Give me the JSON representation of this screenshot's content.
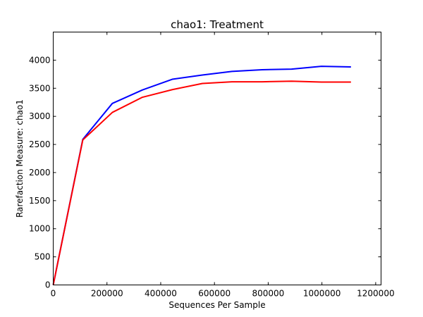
{
  "chart_data": {
    "type": "line",
    "title": "chao1: Treatment",
    "xlabel": "Sequences Per Sample",
    "ylabel": "Rarefaction Measure: chao1",
    "xlim": [
      0,
      1220000
    ],
    "ylim": [
      0,
      4500
    ],
    "xticks": [
      0,
      200000,
      400000,
      600000,
      800000,
      1000000,
      1200000
    ],
    "yticks": [
      0,
      500,
      1000,
      1500,
      2000,
      2500,
      3000,
      3500,
      4000
    ],
    "grid": false,
    "legend": "none",
    "series": [
      {
        "color": "#0000ff",
        "x": [
          0,
          110000,
          220000,
          332000,
          443000,
          555000,
          665000,
          777000,
          887000,
          998000,
          1108000
        ],
        "y": [
          0,
          2590,
          3230,
          3470,
          3660,
          3735,
          3800,
          3830,
          3840,
          3890,
          3880
        ]
      },
      {
        "color": "#ff0000",
        "x": [
          0,
          110000,
          220000,
          332000,
          443000,
          555000,
          665000,
          777000,
          887000,
          998000,
          1108000
        ],
        "y": [
          0,
          2580,
          3070,
          3340,
          3475,
          3585,
          3615,
          3615,
          3625,
          3610,
          3610
        ]
      }
    ]
  }
}
